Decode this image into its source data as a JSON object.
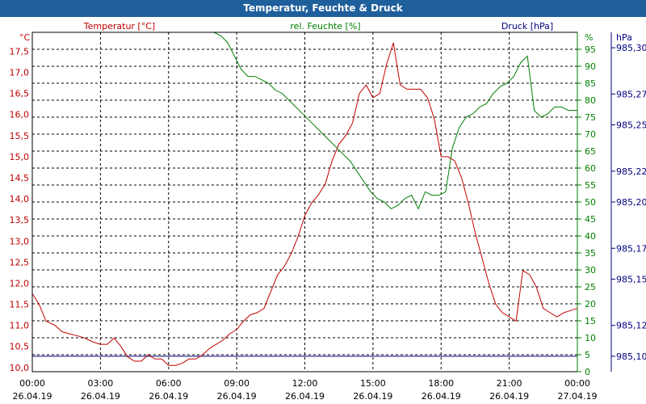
{
  "chart_data": {
    "type": "line",
    "title": "Temperatur, Feuchte & Druck",
    "colors": {
      "temperature": "#c00000",
      "humidity": "#008000",
      "pressure": "#000080",
      "header": "#1f5f9c"
    },
    "grid": true,
    "x_axis": {
      "ticks": [
        {
          "time": "00:00",
          "date": "26.04.19"
        },
        {
          "time": "03:00",
          "date": "26.04.19"
        },
        {
          "time": "06:00",
          "date": "26.04.19"
        },
        {
          "time": "09:00",
          "date": "26.04.19"
        },
        {
          "time": "12:00",
          "date": "26.04.19"
        },
        {
          "time": "15:00",
          "date": "26.04.19"
        },
        {
          "time": "18:00",
          "date": "26.04.19"
        },
        {
          "time": "21:00",
          "date": "26.04.19"
        },
        {
          "time": "00:00",
          "date": "27.04.19"
        }
      ],
      "range_hours": [
        0,
        24
      ]
    },
    "y_left": {
      "label": "Temperatur [°C]",
      "unit": "°C",
      "range": [
        9.9,
        17.95
      ],
      "ticks": [
        "10,0",
        "10,5",
        "11,0",
        "11,5",
        "12,0",
        "12,5",
        "13,0",
        "13,5",
        "14,0",
        "14,5",
        "15,0",
        "15,5",
        "16,0",
        "16,5",
        "17,0",
        "17,5"
      ]
    },
    "y_mid": {
      "label": "rel. Feuchte [%]",
      "unit": "%",
      "range": [
        0,
        100
      ],
      "ticks": [
        "0",
        "5",
        "10",
        "15",
        "20",
        "25",
        "30",
        "35",
        "40",
        "45",
        "50",
        "55",
        "60",
        "65",
        "70",
        "75",
        "80",
        "85",
        "90",
        "95"
      ]
    },
    "y_right": {
      "label": "Druck [hPa]",
      "unit": "hPa",
      "range": [
        985.09,
        985.31
      ],
      "ticks": [
        "985,10",
        "985,12",
        "985,15",
        "985,17",
        "985,20",
        "985,22",
        "985,25",
        "985,27",
        "985,30"
      ]
    },
    "series": [
      {
        "name": "Temperatur [°C]",
        "axis": "left",
        "x": [
          0,
          0.3,
          0.6,
          1.0,
          1.3,
          1.6,
          2.0,
          2.3,
          2.7,
          3.0,
          3.3,
          3.6,
          3.9,
          4.2,
          4.5,
          4.8,
          5.1,
          5.4,
          5.7,
          6.0,
          6.3,
          6.6,
          6.9,
          7.2,
          7.5,
          7.8,
          8.1,
          8.4,
          8.7,
          9.0,
          9.3,
          9.6,
          9.9,
          10.2,
          10.5,
          10.8,
          11.1,
          11.4,
          11.7,
          12.0,
          12.3,
          12.6,
          12.9,
          13.2,
          13.5,
          13.8,
          14.1,
          14.4,
          14.7,
          15.0,
          15.3,
          15.6,
          15.9,
          16.2,
          16.5,
          16.8,
          17.1,
          17.4,
          17.7,
          18.0,
          18.3,
          18.6,
          18.9,
          19.2,
          19.5,
          19.8,
          20.1,
          20.4,
          20.7,
          21.0,
          21.3,
          21.6,
          21.9,
          22.2,
          22.5,
          22.8,
          23.1,
          23.4,
          23.7,
          24.0
        ],
        "y": [
          11.75,
          11.5,
          11.1,
          11.0,
          10.85,
          10.8,
          10.75,
          10.7,
          10.6,
          10.55,
          10.55,
          10.7,
          10.5,
          10.25,
          10.15,
          10.15,
          10.3,
          10.2,
          10.2,
          10.05,
          10.05,
          10.1,
          10.2,
          10.2,
          10.3,
          10.45,
          10.55,
          10.65,
          10.8,
          10.9,
          11.1,
          11.25,
          11.3,
          11.4,
          11.8,
          12.2,
          12.4,
          12.7,
          13.1,
          13.6,
          13.9,
          14.1,
          14.35,
          14.9,
          15.3,
          15.5,
          15.8,
          16.5,
          16.7,
          16.4,
          16.5,
          17.2,
          17.7,
          16.7,
          16.6,
          16.6,
          16.6,
          16.4,
          15.9,
          15.0,
          15.0,
          14.9,
          14.5,
          13.9,
          13.2,
          12.6,
          12.0,
          11.5,
          11.3,
          11.2,
          11.1,
          12.3,
          12.2,
          11.9,
          11.4,
          11.3,
          11.2,
          11.3,
          11.35,
          11.4
        ]
      },
      {
        "name": "rel. Feuchte [%]",
        "axis": "mid",
        "x": [
          0,
          0.3,
          0.5,
          1.0,
          1.5,
          2.0,
          2.5,
          3.0,
          3.5,
          4.0,
          4.5,
          5.0,
          5.5,
          6.0,
          6.5,
          7.0,
          7.5,
          8.0,
          8.3,
          8.6,
          8.9,
          9.2,
          9.5,
          9.8,
          10.1,
          10.4,
          10.7,
          11.0,
          11.3,
          11.6,
          11.9,
          12.2,
          12.5,
          12.8,
          13.1,
          13.4,
          13.7,
          14.0,
          14.3,
          14.6,
          14.9,
          15.2,
          15.5,
          15.8,
          16.1,
          16.4,
          16.7,
          17.0,
          17.3,
          17.6,
          17.9,
          18.2,
          18.5,
          18.8,
          19.1,
          19.4,
          19.7,
          20.0,
          20.3,
          20.6,
          20.9,
          21.2,
          21.5,
          21.8,
          22.1,
          22.4,
          22.7,
          23.0,
          23.3,
          23.6,
          24.0
        ],
        "y": [
          100,
          100,
          100,
          100,
          100,
          100,
          100,
          100,
          100,
          100,
          100,
          100,
          100,
          100,
          100,
          100,
          100,
          100,
          99,
          97,
          93,
          89,
          87,
          87,
          86,
          85,
          83,
          82,
          80,
          78,
          76,
          74,
          72,
          70,
          68,
          66,
          64,
          62,
          59,
          56,
          53,
          51,
          50,
          48,
          49,
          51,
          52,
          48,
          53,
          52,
          52,
          53,
          66,
          72,
          75,
          76,
          78,
          79,
          82,
          84,
          85,
          87,
          91,
          93,
          77,
          75,
          76,
          78,
          78,
          77,
          77
        ]
      }
    ],
    "reference_line": {
      "name": "Druck [hPa]",
      "axis": "right",
      "y": 985.1
    }
  }
}
